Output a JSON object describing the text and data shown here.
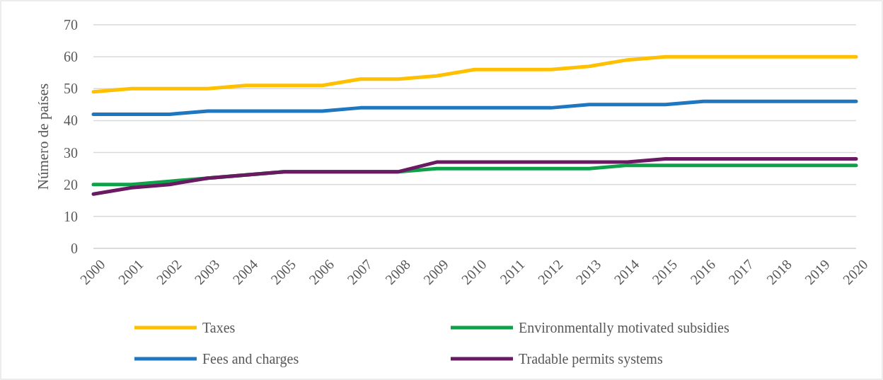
{
  "chart_data": {
    "type": "line",
    "ylabel": "Número de países",
    "categories": [
      "2000",
      "2001",
      "2002",
      "2003",
      "2004",
      "2005",
      "2006",
      "2007",
      "2008",
      "2009",
      "2010",
      "2011",
      "2012",
      "2013",
      "2014",
      "2015",
      "2016",
      "2017",
      "2018",
      "2019",
      "2020"
    ],
    "series": [
      {
        "name": "Taxes",
        "color": "#ffc000",
        "values": [
          49,
          50,
          50,
          50,
          51,
          51,
          51,
          53,
          53,
          54,
          56,
          56,
          56,
          57,
          59,
          60,
          60,
          60,
          60,
          60,
          60
        ]
      },
      {
        "name": "Environmentally motivated subsidies",
        "color": "#0fa04a",
        "values": [
          20,
          20,
          21,
          22,
          23,
          24,
          24,
          24,
          24,
          25,
          25,
          25,
          25,
          25,
          26,
          26,
          26,
          26,
          26,
          26,
          26
        ]
      },
      {
        "name": "Fees and charges",
        "color": "#1f77c0",
        "values": [
          42,
          42,
          42,
          43,
          43,
          43,
          43,
          44,
          44,
          44,
          44,
          44,
          44,
          45,
          45,
          45,
          46,
          46,
          46,
          46,
          46
        ]
      },
      {
        "name": "Tradable permits systems",
        "color": "#6a1a63",
        "values": [
          17,
          19,
          20,
          22,
          23,
          24,
          24,
          24,
          24,
          27,
          27,
          27,
          27,
          27,
          27,
          28,
          28,
          28,
          28,
          28,
          28
        ]
      }
    ],
    "ylim": [
      0,
      70
    ],
    "yticks": [
      0,
      10,
      20,
      30,
      40,
      50,
      60,
      70
    ],
    "grid": "y",
    "legend": "bottom",
    "line_style": "solid",
    "marker": "none"
  }
}
